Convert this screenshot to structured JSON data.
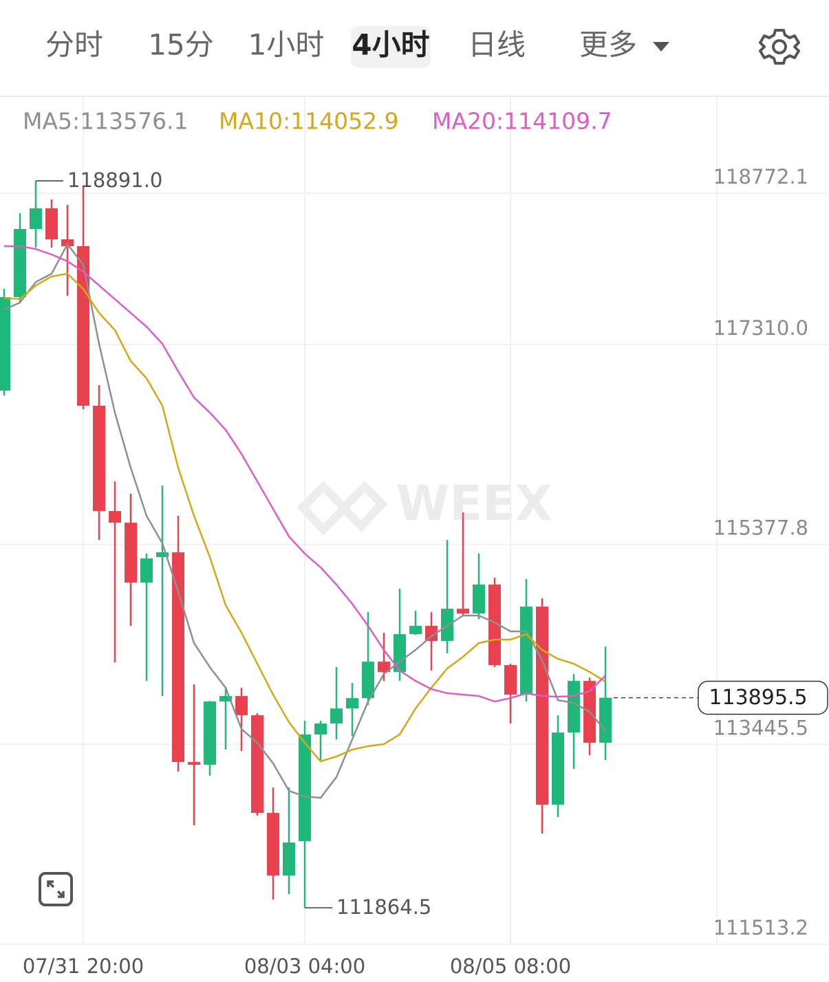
{
  "header": {
    "tabs": [
      "分时",
      "15分",
      "1小时",
      "4小时",
      "日线",
      "更多"
    ],
    "selected": 3
  },
  "chart_data": {
    "type": "candlestick",
    "categories": [
      null,
      null,
      null,
      null,
      null,
      "07/31 20:00",
      null,
      null,
      null,
      null,
      null,
      null,
      null,
      null,
      null,
      null,
      null,
      null,
      null,
      "08/03 04:00",
      null,
      null,
      null,
      null,
      null,
      null,
      null,
      null,
      null,
      null,
      null,
      null,
      "08/05 08:00",
      null,
      null,
      null,
      null,
      null,
      null
    ],
    "open": [
      116864,
      117768,
      118426,
      118626,
      118326,
      118260,
      116718,
      115700,
      115587,
      115009,
      115255,
      115301,
      113274,
      113247,
      113859,
      113912,
      113726,
      112782,
      112177,
      112509,
      113540,
      113646,
      113792,
      113892,
      114244,
      114144,
      114510,
      114590,
      114443,
      114756,
      114709,
      114989,
      114211,
      113925,
      114776,
      112861,
      113559,
      114058,
      113460
    ],
    "high": [
      117848,
      118579,
      118891.0,
      118712,
      118659,
      118845,
      116917,
      115986,
      115867,
      115288,
      115946,
      115654,
      114025,
      113865,
      113992,
      113992,
      113746,
      113028,
      113028,
      113673,
      113673,
      114191,
      114038,
      114723,
      114523,
      114949,
      114736,
      114723,
      115421,
      115687,
      115288,
      115055,
      114224,
      115042,
      114856,
      113726,
      114124,
      114091,
      114390
    ],
    "low": [
      116817,
      117715,
      118247,
      118247,
      117781,
      116684,
      115421,
      114238,
      114590,
      114058,
      113912,
      113181,
      112662,
      113141,
      113394,
      113380,
      112755,
      111944,
      111997,
      111864.5,
      113294,
      113493,
      113526,
      113825,
      114058,
      114058,
      114503,
      114158,
      114324,
      114689,
      114656,
      114191,
      113646,
      113859,
      112582,
      112742,
      113207,
      113340,
      113294
    ],
    "close": [
      117768,
      118426,
      118626,
      118326,
      118260,
      116718,
      115700,
      115587,
      115009,
      115242,
      115301,
      113274,
      113247,
      113859,
      113912,
      113726,
      112782,
      112177,
      112496,
      113540,
      113646,
      113792,
      113892,
      114244,
      114144,
      114510,
      114590,
      114443,
      114756,
      114709,
      114989,
      114211,
      113925,
      114776,
      112861,
      113559,
      114058,
      113460,
      113895.5
    ],
    "up_color": "#1fb87a",
    "down_color": "#e8414f",
    "series": [
      {
        "name": "MA5:113576.1",
        "color": "#8f8f8f",
        "values": [
          117648,
          117715,
          117914,
          117994,
          118280,
          118080,
          117316,
          116651,
          116119,
          115654,
          115388,
          114923,
          114424,
          114191,
          113992,
          113593,
          113460,
          113261,
          112995,
          112941,
          112928,
          113128,
          113493,
          113859,
          114125,
          114244,
          114357,
          114490,
          114590,
          114690,
          114690,
          114623,
          114537,
          114537,
          114258,
          113872,
          113846,
          113759,
          113576.1
        ]
      },
      {
        "name": "MA10:114052.9",
        "color": "#d4a817",
        "values": [
          117761,
          117748,
          117881,
          117967,
          117994,
          117848,
          117615,
          117449,
          117150,
          116983,
          116718,
          116119,
          115654,
          115255,
          114790,
          114524,
          114224,
          113925,
          113659,
          113460,
          113280,
          113327,
          113394,
          113427,
          113447,
          113540,
          113792,
          113992,
          114178,
          114291,
          114424,
          114457,
          114457,
          114510,
          114357,
          114271,
          114224,
          114145,
          114052.9
        ]
      },
      {
        "name": "MA20:114109.7",
        "color": "#de5cc4",
        "values": [
          118260,
          118260,
          118233,
          118180,
          118114,
          118014,
          117881,
          117748,
          117615,
          117482,
          117316,
          117050,
          116797,
          116651,
          116485,
          116252,
          115986,
          115720,
          115454,
          115288,
          115155,
          114989,
          114803,
          114590,
          114357,
          114158,
          114058,
          113979,
          113939,
          113925,
          113912,
          113859,
          113892,
          113939,
          113912,
          113905,
          113912,
          113959,
          114109.7
        ]
      }
    ],
    "ylim": [
      111513.2,
      119709
    ],
    "yticks": [
      118772.1,
      {
        "value": 117310,
        "label": "117310.0"
      },
      115377.8,
      113445.5,
      111513.2
    ],
    "grid": true,
    "high_label": "118891.0",
    "low_label": "111864.5",
    "last_price_label": "113895.5",
    "watermark": "WEEX"
  }
}
